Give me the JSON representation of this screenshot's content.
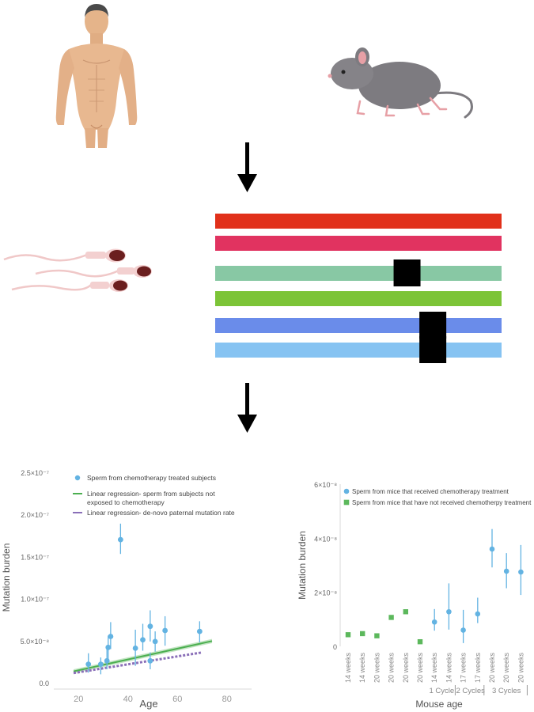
{
  "bars": [
    {
      "color": "#e1301a",
      "marks": []
    },
    {
      "color": "#e13360",
      "marks": []
    },
    {
      "color": "#88c8a4",
      "marks": [
        0.67
      ]
    },
    {
      "color": "#7cc437",
      "marks": []
    },
    {
      "color": "#6a8cea",
      "marks": [
        0.76
      ]
    },
    {
      "color": "#86c3f2",
      "marks": [
        0.76
      ]
    }
  ],
  "colors": {
    "human_skin": "#e8b890",
    "mouse_body": "#7d7b80",
    "sperm_head": "#6b1f1f",
    "arrow": "#000000",
    "mutation_block": "#000000"
  },
  "chart_data": [
    {
      "type": "scatter",
      "xlabel": "Age",
      "ylabel": "Mutation burden",
      "xlim": [
        10,
        90
      ],
      "ylim": [
        0,
        2.5e-07
      ],
      "x_ticks": [
        "20",
        "40",
        "60",
        "80"
      ],
      "x_tick_values": [
        20,
        40,
        60,
        80
      ],
      "y_ticks": [
        "0.0",
        "5.0×10⁻⁸",
        "1.0×10⁻⁷",
        "1.5×10⁻⁷",
        "2.0×10⁻⁷",
        "2.5×10⁻⁷"
      ],
      "y_tick_values": [
        0,
        5e-08,
        1e-07,
        1.5e-07,
        2e-07,
        2.5e-07
      ],
      "legend": [
        {
          "label": "Sperm from chemotherapy treated  subjects",
          "kind": "point",
          "color": "#63b3e2"
        },
        {
          "label": "Linear regression- sperm from subjects not",
          "label2": "exposed to chemotherapy",
          "kind": "line",
          "color": "#4caf50"
        },
        {
          "label": "Linear regression- de-novo paternal mutation rate",
          "kind": "line",
          "color": "#8a6fb8"
        }
      ],
      "series": [
        {
          "name": "Sperm from chemotherapy treated  subjects",
          "color": "#63b3e2",
          "points": [
            {
              "x": 24,
              "y": 2.2e-08,
              "lo": 1.2e-08,
              "hi": 3.5e-08
            },
            {
              "x": 29,
              "y": 2.2e-08,
              "lo": 1e-08,
              "hi": 3e-08
            },
            {
              "x": 31.5,
              "y": 2.6e-08,
              "lo": 1.6e-08,
              "hi": 4.2e-08
            },
            {
              "x": 32,
              "y": 4.2e-08,
              "lo": 2.8e-08,
              "hi": 5.6e-08
            },
            {
              "x": 33,
              "y": 5.5e-08,
              "lo": 4e-08,
              "hi": 7.2e-08
            },
            {
              "x": 37,
              "y": 1.7e-07,
              "lo": 1.53e-07,
              "hi": 1.89e-07
            },
            {
              "x": 43,
              "y": 4.1e-08,
              "lo": 2e-08,
              "hi": 6.3e-08
            },
            {
              "x": 46,
              "y": 5.1e-08,
              "lo": 3.8e-08,
              "hi": 7e-08
            },
            {
              "x": 49,
              "y": 2.6e-08,
              "lo": 1.6e-08,
              "hi": 3.6e-08
            },
            {
              "x": 49,
              "y": 6.7e-08,
              "lo": 4.9e-08,
              "hi": 8.6e-08
            },
            {
              "x": 51,
              "y": 4.9e-08,
              "lo": 3.7e-08,
              "hi": 6.1e-08
            },
            {
              "x": 55,
              "y": 6.2e-08,
              "lo": 4.4e-08,
              "hi": 7.9e-08
            },
            {
              "x": 69,
              "y": 6.1e-08,
              "lo": 4.8e-08,
              "hi": 7.3e-08
            }
          ]
        },
        {
          "name": "Linear regression- sperm from subjects not exposed to chemotherapy",
          "color": "#4caf50",
          "line": [
            [
              18,
              1.35e-08
            ],
            [
              74,
              4.95e-08
            ]
          ],
          "band_halfwidth": 2.5e-09
        },
        {
          "name": "Linear regression- de-novo paternal mutation rate",
          "color": "#8a6fb8",
          "line": [
            [
              18,
              1.15e-08
            ],
            [
              70,
              3.6e-08
            ]
          ]
        }
      ]
    },
    {
      "type": "scatter",
      "xlabel": "Mouse age",
      "ylabel": "Mutation burden",
      "ylim": [
        0,
        6e-08
      ],
      "y_ticks": [
        "0",
        "2×10⁻⁸",
        "4×10⁻⁸",
        "6×10⁻⁸"
      ],
      "y_tick_values": [
        0,
        2e-08,
        4e-08,
        6e-08
      ],
      "categories": [
        "14 weeks",
        "14 weeks",
        "20 weeks",
        "20 weeks",
        "20 weeks",
        "20 weeks",
        "14 weeks",
        "14 weeks",
        "17 weeks",
        "17 weeks",
        "20 weeks",
        "20 weeks",
        "20 weeks"
      ],
      "groups": [
        {
          "label": "1 Cycle",
          "from": 6,
          "to": 7
        },
        {
          "label": "2 Cycles",
          "from": 8,
          "to": 9
        },
        {
          "label": "3 Cycles",
          "from": 10,
          "to": 12
        }
      ],
      "legend": [
        {
          "label": "Sperm from mice that received chemotherapy treatment",
          "kind": "point",
          "color": "#63b3e2"
        },
        {
          "label": "Sperm from mice that have not received chemotherpy treatment",
          "kind": "square",
          "color": "#5cb85c"
        }
      ],
      "series": [
        {
          "name": "Sperm from mice that have not received chemotherpy treatment",
          "color": "#5cb85c",
          "marker": "square",
          "points": [
            {
              "i": 0,
              "y": 4.3e-09
            },
            {
              "i": 1,
              "y": 4.7e-09
            },
            {
              "i": 2,
              "y": 3.9e-09
            },
            {
              "i": 3,
              "y": 1.07e-08
            },
            {
              "i": 4,
              "y": 1.28e-08
            },
            {
              "i": 5,
              "y": 1.7e-09
            }
          ]
        },
        {
          "name": "Sperm from mice that received chemotherapy treatment",
          "color": "#63b3e2",
          "marker": "circle",
          "points": [
            {
              "i": 6,
              "y": 9e-09,
              "lo": 5.8e-09,
              "hi": 1.38e-08
            },
            {
              "i": 7,
              "y": 1.28e-08,
              "lo": 6.2e-09,
              "hi": 2.33e-08
            },
            {
              "i": 8,
              "y": 6e-09,
              "lo": 1.2e-09,
              "hi": 1.35e-08
            },
            {
              "i": 9,
              "y": 1.2e-08,
              "lo": 8.6e-09,
              "hi": 1.8e-08
            },
            {
              "i": 10,
              "y": 3.6e-08,
              "lo": 2.92e-08,
              "hi": 4.34e-08
            },
            {
              "i": 11,
              "y": 2.78e-08,
              "lo": 2.15e-08,
              "hi": 3.45e-08
            },
            {
              "i": 12,
              "y": 2.75e-08,
              "lo": 1.9e-08,
              "hi": 3.75e-08
            }
          ]
        }
      ]
    }
  ]
}
